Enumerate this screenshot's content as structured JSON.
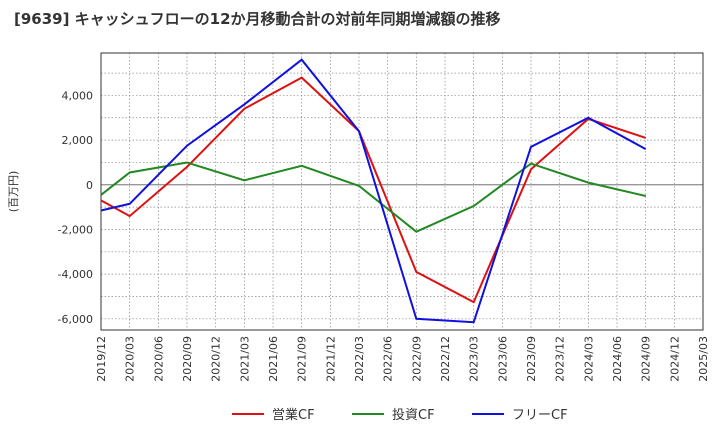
{
  "chart_data": {
    "type": "line",
    "title": "[9639]  キャッシュフローの12か月移動合計の対前年同期増減額の推移",
    "ylabel": "(百万円)",
    "xlabel": "",
    "ylim": [
      -6500,
      5900
    ],
    "yticks": [
      4000,
      2000,
      0,
      -2000,
      -4000,
      -6000
    ],
    "ytick_labels": [
      "4,000",
      "2,000",
      "0",
      "-2,000",
      "-4,000",
      "-6,000"
    ],
    "x": [
      "2019/12",
      "2020/03",
      "2020/06",
      "2020/09",
      "2020/12",
      "2021/03",
      "2021/06",
      "2021/09",
      "2021/12",
      "2022/03",
      "2022/06",
      "2022/09",
      "2022/12",
      "2023/03",
      "2023/06",
      "2023/09",
      "2023/12",
      "2024/03",
      "2024/06",
      "2024/09",
      "2024/12",
      "2025/03"
    ],
    "grid": true,
    "legend_position": "bottom",
    "series": [
      {
        "name": "営業CF",
        "color": "#dd1111",
        "points": [
          [
            "2019/12",
            -700
          ],
          [
            "2020/03",
            -1400
          ],
          [
            "2020/09",
            800
          ],
          [
            "2021/03",
            3400
          ],
          [
            "2021/09",
            4800
          ],
          [
            "2022/03",
            2400
          ],
          [
            "2022/09",
            -3900
          ],
          [
            "2023/03",
            -5250
          ],
          [
            "2023/09",
            700
          ],
          [
            "2024/03",
            2950
          ],
          [
            "2024/09",
            2100
          ]
        ]
      },
      {
        "name": "投資CF",
        "color": "#228822",
        "points": [
          [
            "2019/12",
            -450
          ],
          [
            "2020/03",
            550
          ],
          [
            "2020/09",
            1000
          ],
          [
            "2021/03",
            200
          ],
          [
            "2021/09",
            850
          ],
          [
            "2022/03",
            -50
          ],
          [
            "2022/09",
            -2100
          ],
          [
            "2023/03",
            -950
          ],
          [
            "2023/09",
            950
          ],
          [
            "2024/03",
            100
          ],
          [
            "2024/09",
            -500
          ]
        ]
      },
      {
        "name": "フリーCF",
        "color": "#1111dd",
        "points": [
          [
            "2019/12",
            -1150
          ],
          [
            "2020/03",
            -850
          ],
          [
            "2020/09",
            1750
          ],
          [
            "2021/03",
            3600
          ],
          [
            "2021/09",
            5600
          ],
          [
            "2022/03",
            2400
          ],
          [
            "2022/09",
            -6000
          ],
          [
            "2023/03",
            -6150
          ],
          [
            "2023/09",
            1700
          ],
          [
            "2024/03",
            3000
          ],
          [
            "2024/09",
            1600
          ]
        ]
      }
    ]
  }
}
